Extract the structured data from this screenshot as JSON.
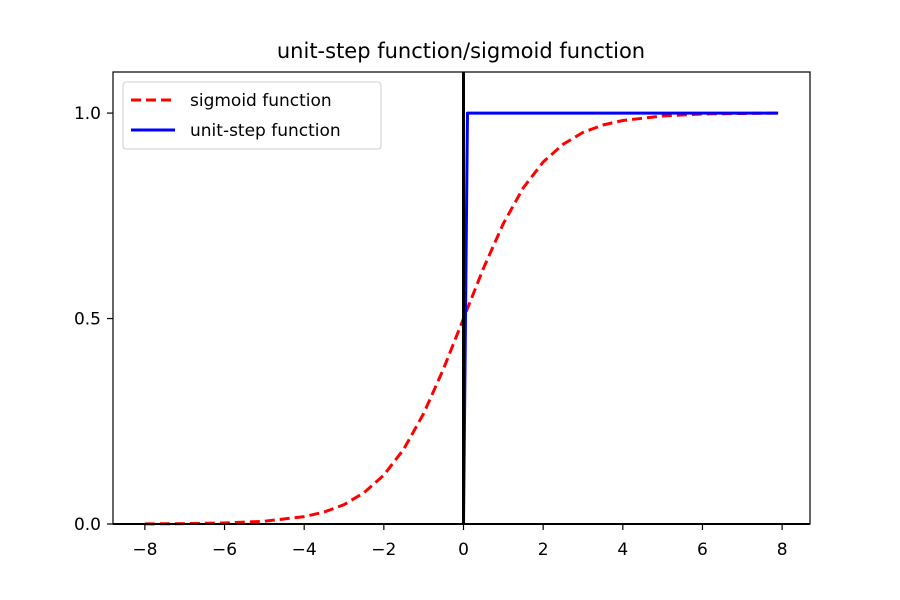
{
  "chart_data": {
    "type": "line",
    "title": "unit-step function/sigmoid function",
    "xlabel": "",
    "ylabel": "",
    "xlim": [
      -8.8,
      8.7
    ],
    "ylim": [
      0.0,
      1.1
    ],
    "x_ticks": [
      -8,
      -6,
      -4,
      -2,
      0,
      2,
      4,
      6,
      8
    ],
    "x_tick_labels": [
      "−8",
      "−6",
      "−4",
      "−2",
      "0",
      "2",
      "4",
      "6",
      "8"
    ],
    "y_ticks": [
      0.0,
      0.5,
      1.0
    ],
    "y_tick_labels": [
      "0.0",
      "0.5",
      "1.0"
    ],
    "grid": false,
    "legend_position": "top-left",
    "vertical_reference_line": {
      "x": 0,
      "color": "#000000"
    },
    "series": [
      {
        "name": "sigmoid function",
        "color": "#ff0000",
        "style": "dashed",
        "x": [
          -8.0,
          -7.0,
          -6.0,
          -5.0,
          -4.0,
          -3.5,
          -3.0,
          -2.5,
          -2.0,
          -1.5,
          -1.0,
          -0.5,
          0.0,
          0.5,
          1.0,
          1.5,
          2.0,
          2.5,
          3.0,
          3.5,
          4.0,
          5.0,
          6.0,
          7.0,
          7.9
        ],
        "y": [
          0.0003,
          0.0009,
          0.0025,
          0.0067,
          0.018,
          0.029,
          0.047,
          0.076,
          0.119,
          0.182,
          0.269,
          0.378,
          0.5,
          0.622,
          0.731,
          0.818,
          0.881,
          0.924,
          0.953,
          0.971,
          0.982,
          0.993,
          0.998,
          0.999,
          1.0
        ]
      },
      {
        "name": "unit-step function",
        "color": "#0000ff",
        "style": "solid",
        "x": [
          0.0,
          0.1,
          7.9
        ],
        "y": [
          0.0,
          1.0,
          1.0
        ]
      }
    ]
  }
}
